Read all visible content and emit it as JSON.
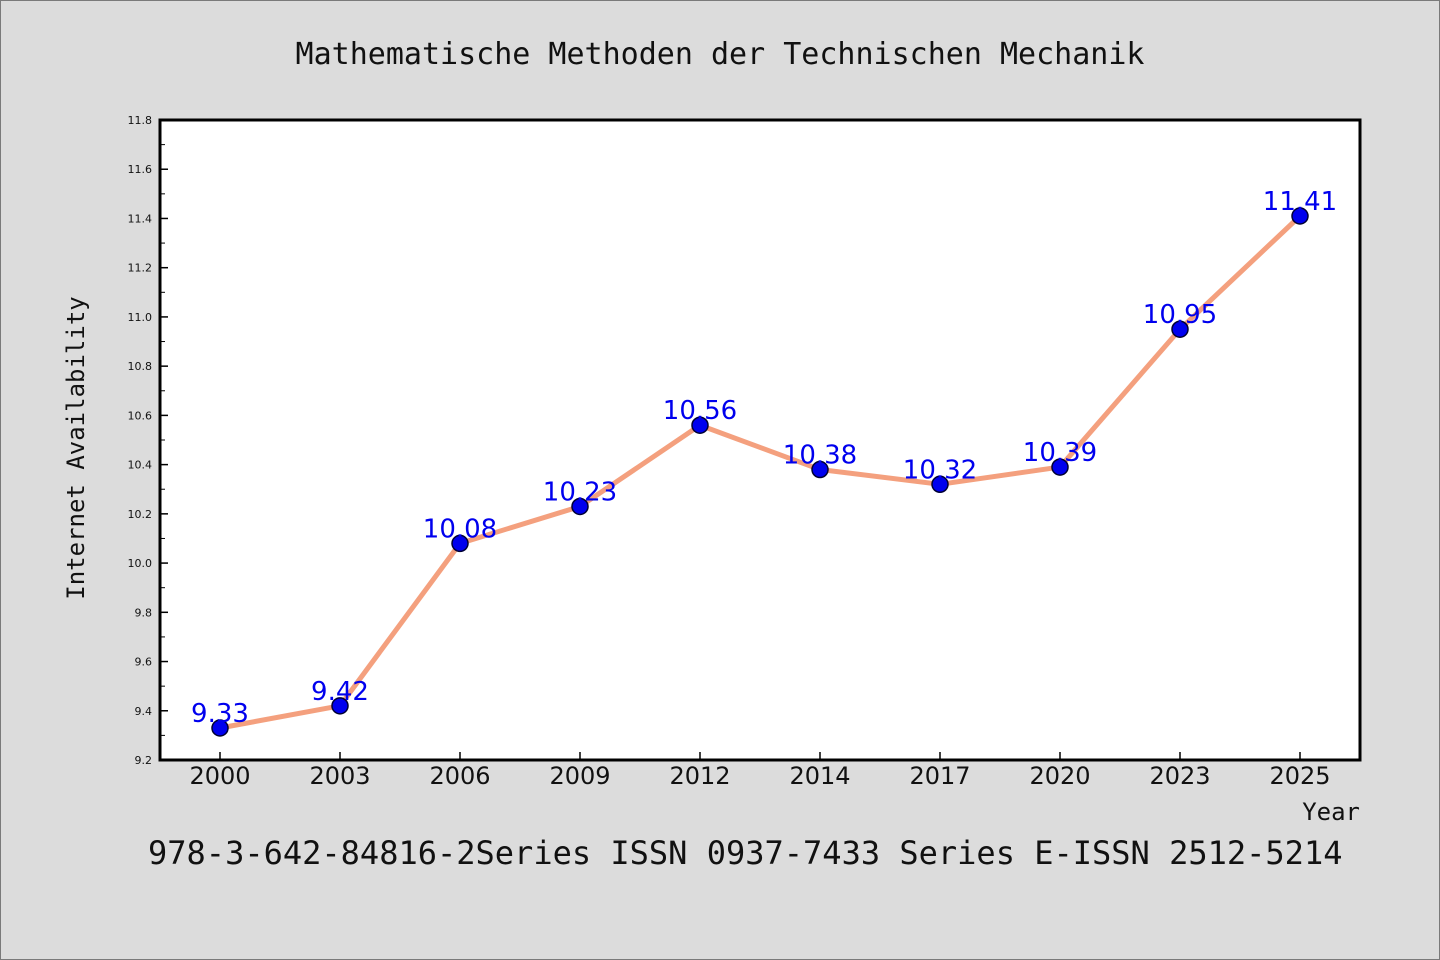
{
  "chart_data": {
    "type": "line",
    "title": "Mathematische Methoden der Technischen Mechanik",
    "xlabel": "Year",
    "ylabel": "Internet Availability",
    "categories": [
      "2000",
      "2003",
      "2006",
      "2009",
      "2012",
      "2014",
      "2017",
      "2020",
      "2023",
      "2025"
    ],
    "values": [
      9.33,
      9.42,
      10.08,
      10.23,
      10.56,
      10.38,
      10.32,
      10.39,
      10.95,
      11.41
    ],
    "data_labels": [
      "9.33",
      "9.42",
      "10.08",
      "10.23",
      "10.56",
      "10.38",
      "10.32",
      "10.39",
      "10.95",
      "11.41"
    ],
    "ylim": [
      9.2,
      11.8
    ],
    "yticks": [
      "9.2",
      "9.4",
      "9.6",
      "9.8",
      "10.0",
      "10.2",
      "10.4",
      "10.6",
      "10.8",
      "11.0",
      "11.2",
      "11.4",
      "11.6",
      "11.8"
    ],
    "grid": false,
    "colors": {
      "line": "#f4a07e",
      "marker": "#0000ee",
      "marker_edge": "#000033",
      "data_label": "#0000ee",
      "plot_bg": "#ffffff",
      "page_bg": "#dcdcdc"
    }
  },
  "footer": {
    "text": "978-3-642-84816-2Series ISSN 0937-7433 Series E-ISSN 2512-5214"
  }
}
